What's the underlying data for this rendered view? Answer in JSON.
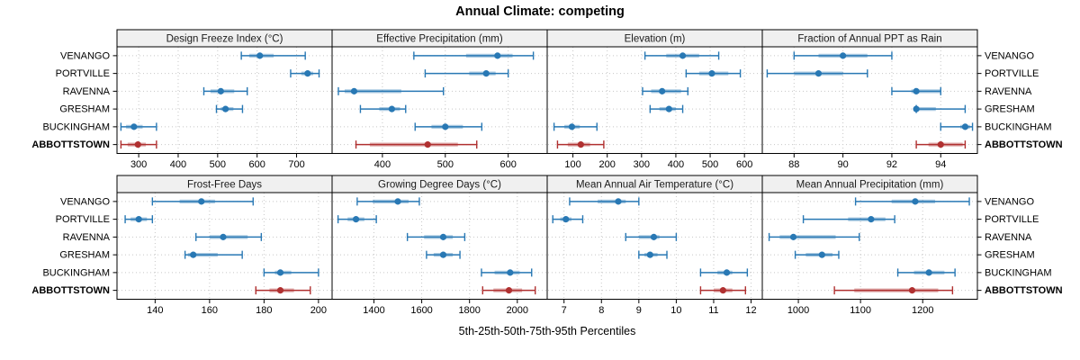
{
  "title": "Annual Climate: competing",
  "caption": "5th-25th-50th-75th-95th Percentiles",
  "colors": {
    "series_blue": "#2878b4",
    "highlight_red": "#b03030",
    "strip_bg": "#f0f0f0",
    "panel_border": "#000000",
    "grid": "#c8c8c8",
    "text": "#000000"
  },
  "chart_data": {
    "type": "dotplot-percentiles",
    "percentile_labels": [
      "5th",
      "25th",
      "50th",
      "75th",
      "95th"
    ],
    "categories": [
      "VENANGO",
      "PORTVILLE",
      "RAVENNA",
      "GRESHAM",
      "BUCKINGHAM",
      "ABBOTTSTOWN"
    ],
    "highlight_category": "ABBOTTSTOWN",
    "legend_position": "none",
    "grid": "dotted",
    "panels": [
      {
        "title": "Design Freeze Index (°C)",
        "grid_row": 0,
        "grid_col": 0,
        "domain": [
          245,
          790
        ],
        "ticks": [
          300,
          400,
          500,
          600,
          700
        ],
        "values": {
          "VENANGO": [
            560,
            580,
            607,
            642,
            722
          ],
          "PORTVILLE": [
            685,
            712,
            728,
            742,
            757
          ],
          "RAVENNA": [
            465,
            482,
            508,
            542,
            575
          ],
          "GRESHAM": [
            497,
            508,
            520,
            540,
            563
          ],
          "BUCKINGHAM": [
            255,
            268,
            288,
            310,
            345
          ],
          "ABBOTTSTOWN": [
            255,
            272,
            298,
            318,
            345
          ]
        }
      },
      {
        "title": "Effective Precipitation (mm)",
        "grid_row": 0,
        "grid_col": 1,
        "domain": [
          320,
          662
        ],
        "ticks": [
          400,
          500,
          600
        ],
        "values": {
          "VENANGO": [
            450,
            533,
            583,
            607,
            640
          ],
          "PORTVILLE": [
            468,
            538,
            565,
            580,
            600
          ],
          "RAVENNA": [
            330,
            340,
            355,
            430,
            497
          ],
          "GRESHAM": [
            365,
            395,
            415,
            428,
            437
          ],
          "BUCKINGHAM": [
            452,
            478,
            500,
            528,
            558
          ],
          "ABBOTTSTOWN": [
            358,
            380,
            472,
            520,
            550
          ]
        }
      },
      {
        "title": "Elevation (m)",
        "grid_row": 0,
        "grid_col": 2,
        "domain": [
          25,
          652
        ],
        "ticks": [
          100,
          200,
          300,
          400,
          500,
          600
        ],
        "values": {
          "VENANGO": [
            310,
            372,
            420,
            468,
            525
          ],
          "PORTVILLE": [
            430,
            468,
            505,
            553,
            588
          ],
          "RAVENNA": [
            303,
            328,
            360,
            415,
            435
          ],
          "GRESHAM": [
            325,
            352,
            380,
            400,
            420
          ],
          "BUCKINGHAM": [
            45,
            75,
            97,
            120,
            170
          ],
          "ABBOTTSTOWN": [
            55,
            85,
            123,
            150,
            190
          ]
        }
      },
      {
        "title": "Fraction of Annual PPT as Rain",
        "grid_row": 0,
        "grid_col": 3,
        "domain": [
          86.7,
          95.5
        ],
        "ticks": [
          88,
          90,
          92,
          94
        ],
        "values": {
          "VENANGO": [
            88,
            89,
            90,
            91,
            92
          ],
          "PORTVILLE": [
            86.9,
            88,
            89,
            90,
            91
          ],
          "RAVENNA": [
            92,
            92.8,
            93,
            94,
            94
          ],
          "GRESHAM": [
            93,
            93,
            93,
            93.8,
            95
          ],
          "BUCKINGHAM": [
            94,
            94.8,
            95,
            95.2,
            95.3
          ],
          "ABBOTTSTOWN": [
            93,
            93.5,
            94,
            94.9,
            95
          ]
        }
      },
      {
        "title": "Frost-Free Days",
        "grid_row": 1,
        "grid_col": 0,
        "domain": [
          126,
          205
        ],
        "ticks": [
          140,
          160,
          180,
          200
        ],
        "values": {
          "VENANGO": [
            139,
            149,
            157,
            162,
            176
          ],
          "PORTVILLE": [
            129,
            131,
            134,
            137,
            139
          ],
          "RAVENNA": [
            155,
            160,
            165,
            174,
            179
          ],
          "GRESHAM": [
            151,
            152,
            154,
            163,
            172
          ],
          "BUCKINGHAM": [
            180,
            184,
            186,
            190,
            200
          ],
          "ABBOTTSTOWN": [
            177,
            182,
            186,
            191,
            197
          ]
        }
      },
      {
        "title": "Growing Degree Days (°C)",
        "grid_row": 1,
        "grid_col": 1,
        "domain": [
          1225,
          2125
        ],
        "ticks": [
          1400,
          1600,
          1800,
          2000
        ],
        "values": {
          "VENANGO": [
            1330,
            1395,
            1500,
            1545,
            1590
          ],
          "PORTVILLE": [
            1250,
            1290,
            1325,
            1360,
            1410
          ],
          "RAVENNA": [
            1540,
            1610,
            1690,
            1730,
            1780
          ],
          "GRESHAM": [
            1620,
            1650,
            1690,
            1730,
            1760
          ],
          "BUCKINGHAM": [
            1850,
            1905,
            1970,
            2010,
            2060
          ],
          "ABBOTTSTOWN": [
            1855,
            1900,
            1965,
            2020,
            2075
          ]
        }
      },
      {
        "title": "Mean Annual Air Temperature (°C)",
        "grid_row": 1,
        "grid_col": 2,
        "domain": [
          6.55,
          12.3
        ],
        "ticks": [
          7,
          8,
          9,
          10,
          11,
          12
        ],
        "values": {
          "VENANGO": [
            7.15,
            7.9,
            8.45,
            8.65,
            9.0
          ],
          "PORTVILLE": [
            6.7,
            6.9,
            7.05,
            7.2,
            7.5
          ],
          "RAVENNA": [
            8.65,
            9.0,
            9.4,
            9.55,
            10.0
          ],
          "GRESHAM": [
            9.0,
            9.15,
            9.3,
            9.5,
            9.75
          ],
          "BUCKINGHAM": [
            10.65,
            11.1,
            11.35,
            11.5,
            11.9
          ],
          "ABBOTTSTOWN": [
            10.65,
            11.0,
            11.25,
            11.5,
            11.85
          ]
        }
      },
      {
        "title": "Mean Annual Precipitation (mm)",
        "grid_row": 1,
        "grid_col": 3,
        "domain": [
          942,
          1288
        ],
        "ticks": [
          1000,
          1100,
          1200
        ],
        "values": {
          "VENANGO": [
            1092,
            1150,
            1188,
            1220,
            1275
          ],
          "PORTVILLE": [
            1008,
            1080,
            1117,
            1140,
            1155
          ],
          "RAVENNA": [
            953,
            970,
            992,
            1060,
            1098
          ],
          "GRESHAM": [
            995,
            1012,
            1038,
            1055,
            1065
          ],
          "BUCKINGHAM": [
            1160,
            1186,
            1210,
            1235,
            1252
          ],
          "ABBOTTSTOWN": [
            1058,
            1090,
            1183,
            1225,
            1248
          ]
        }
      }
    ]
  }
}
